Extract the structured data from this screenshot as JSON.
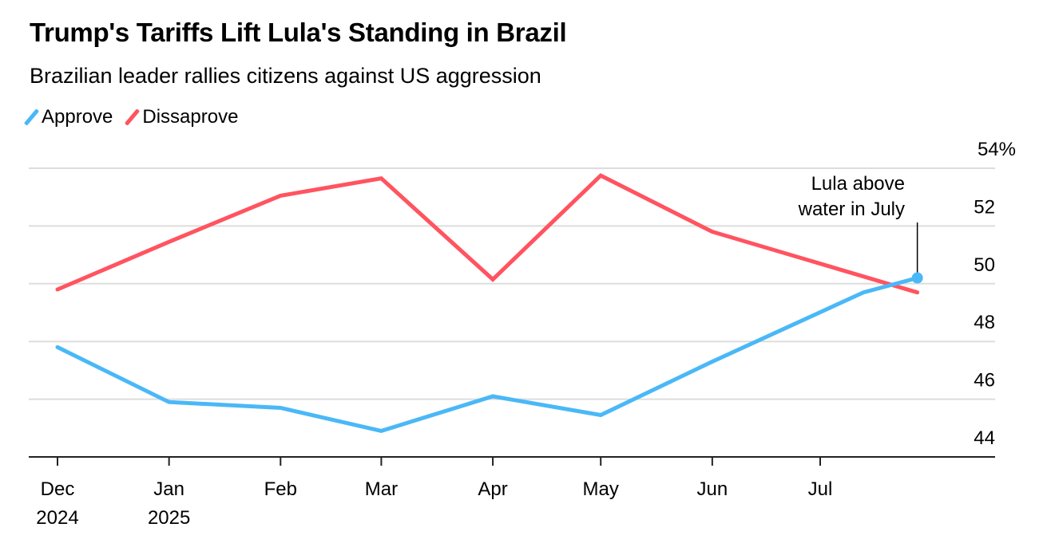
{
  "chart_data": {
    "type": "line",
    "title": "Trump's Tariffs Lift Lula's Standing in Brazil",
    "subtitle": "Brazilian leader rallies citizens against US aggression",
    "xlabel": "",
    "ylabel": "",
    "ylim": [
      44,
      54
    ],
    "yticks": [
      {
        "value": 54,
        "label": "54%"
      },
      {
        "value": 52,
        "label": "52"
      },
      {
        "value": 50,
        "label": "50"
      },
      {
        "value": 48,
        "label": "48"
      },
      {
        "value": 46,
        "label": "46"
      },
      {
        "value": 44,
        "label": "44"
      }
    ],
    "xticks": [
      {
        "date": "2024-12-01",
        "label": "Dec",
        "label2": "2024"
      },
      {
        "date": "2025-01-01",
        "label": "Jan",
        "label2": "2025"
      },
      {
        "date": "2025-02-01",
        "label": "Feb"
      },
      {
        "date": "2025-03-01",
        "label": "Mar"
      },
      {
        "date": "2025-04-01",
        "label": "Apr"
      },
      {
        "date": "2025-05-01",
        "label": "May"
      },
      {
        "date": "2025-06-01",
        "label": "Jun"
      },
      {
        "date": "2025-07-01",
        "label": "Jul"
      }
    ],
    "grid": true,
    "legend_position": "top-left",
    "series": [
      {
        "name": "Approve",
        "color": "#4ab8f7",
        "x": [
          "2024-12-01",
          "2025-01-01",
          "2025-02-01",
          "2025-03-01",
          "2025-04-01",
          "2025-05-01",
          "2025-06-01",
          "2025-07-13",
          "2025-07-28"
        ],
        "values": [
          47.8,
          45.9,
          45.7,
          44.9,
          46.1,
          45.45,
          47.3,
          49.7,
          50.2
        ]
      },
      {
        "name": "Dissaprove",
        "color": "#ff5460",
        "x": [
          "2024-12-01",
          "2025-01-01",
          "2025-02-01",
          "2025-03-01",
          "2025-04-01",
          "2025-05-01",
          "2025-06-01",
          "2025-07-28"
        ],
        "values": [
          49.8,
          51.45,
          53.05,
          53.65,
          50.15,
          53.75,
          51.8,
          49.7
        ]
      }
    ],
    "annotation": {
      "line1": "Lula above",
      "line2": "water in July",
      "series": "Approve",
      "date": "2025-07-28"
    }
  }
}
